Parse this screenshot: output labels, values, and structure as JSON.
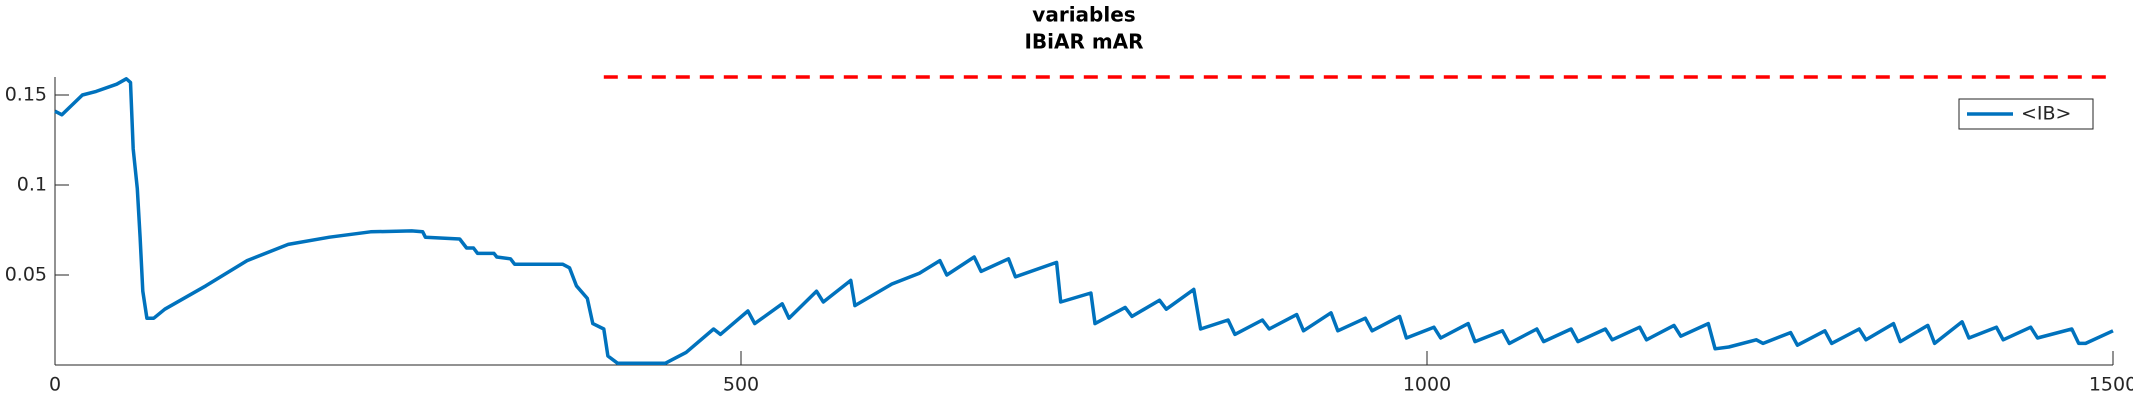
{
  "chart_data": {
    "type": "line",
    "title": "variables",
    "subtitle": "IBiAR mAR",
    "x": [
      0,
      5,
      20,
      30,
      45,
      52,
      55,
      57,
      60,
      62,
      64,
      67,
      72,
      80,
      110,
      140,
      170,
      200,
      230,
      260,
      268,
      270,
      295,
      300,
      305,
      308,
      320,
      322,
      332,
      335,
      370,
      375,
      380,
      388,
      392,
      400,
      403,
      410,
      445,
      450,
      460,
      480,
      485,
      505,
      510,
      530,
      535,
      555,
      560,
      580,
      583,
      610,
      630,
      645,
      650,
      670,
      675,
      695,
      700,
      730,
      733,
      755,
      758,
      780,
      785,
      805,
      810,
      830,
      835,
      855,
      860,
      880,
      885,
      905,
      910,
      930,
      935,
      955,
      960,
      980,
      985,
      1005,
      1010,
      1030,
      1035,
      1055,
      1060,
      1080,
      1085,
      1105,
      1110,
      1130,
      1135,
      1155,
      1160,
      1180,
      1185,
      1205,
      1210,
      1220,
      1240,
      1245,
      1265,
      1270,
      1290,
      1295,
      1315,
      1320,
      1340,
      1345,
      1365,
      1370,
      1390,
      1395,
      1415,
      1420,
      1440,
      1445,
      1470,
      1475,
      1480,
      1500
    ],
    "series": [
      {
        "name": "<IB>",
        "color": "#0072bd",
        "values": [
          0.141,
          0.139,
          0.15,
          0.152,
          0.156,
          0.159,
          0.157,
          0.12,
          0.098,
          0.071,
          0.041,
          0.026,
          0.026,
          0.031,
          0.044,
          0.058,
          0.067,
          0.071,
          0.074,
          0.0745,
          0.074,
          0.071,
          0.07,
          0.065,
          0.065,
          0.062,
          0.062,
          0.06,
          0.059,
          0.056,
          0.056,
          0.054,
          0.044,
          0.037,
          0.023,
          0.02,
          0.005,
          0.001,
          0.001,
          0.003,
          0.007,
          0.02,
          0.017,
          0.03,
          0.023,
          0.034,
          0.026,
          0.041,
          0.035,
          0.047,
          0.033,
          0.045,
          0.051,
          0.058,
          0.05,
          0.06,
          0.052,
          0.059,
          0.049,
          0.057,
          0.035,
          0.04,
          0.023,
          0.032,
          0.027,
          0.036,
          0.031,
          0.042,
          0.02,
          0.025,
          0.017,
          0.025,
          0.02,
          0.028,
          0.019,
          0.029,
          0.019,
          0.026,
          0.019,
          0.027,
          0.015,
          0.021,
          0.015,
          0.023,
          0.013,
          0.019,
          0.012,
          0.02,
          0.013,
          0.02,
          0.013,
          0.02,
          0.014,
          0.021,
          0.014,
          0.022,
          0.016,
          0.023,
          0.009,
          0.01,
          0.014,
          0.012,
          0.018,
          0.011,
          0.019,
          0.012,
          0.02,
          0.014,
          0.023,
          0.013,
          0.022,
          0.012,
          0.024,
          0.015,
          0.021,
          0.014,
          0.021,
          0.015,
          0.02,
          0.012,
          0.012,
          0.019
        ]
      }
    ],
    "reference_line": {
      "x": [
        400,
        1500
      ],
      "values": [
        0.16,
        0.16
      ],
      "color": "#ff0000"
    },
    "xlim": [
      0,
      1500
    ],
    "xticks": [
      0,
      500,
      1000,
      1500
    ],
    "ylim": [
      0,
      0.16
    ],
    "yticks": [
      0.05,
      0.1,
      0.15
    ],
    "legend": "upper right"
  }
}
